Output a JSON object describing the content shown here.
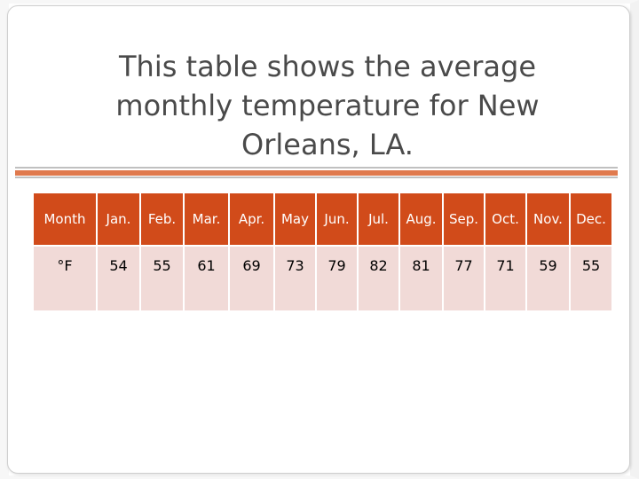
{
  "slide": {
    "title": "This table shows the average monthly temperature for New Orleans, LA."
  },
  "table": {
    "header_label": "Month",
    "months": [
      "Jan.",
      "Feb.",
      "Mar.",
      "Apr.",
      "May",
      "Jun.",
      "Jul.",
      "Aug.",
      "Sep.",
      "Oct.",
      "Nov.",
      "Dec."
    ],
    "unit_label": "°F",
    "temperatures": [
      "54",
      "55",
      "61",
      "69",
      "73",
      "79",
      "82",
      "81",
      "77",
      "71",
      "59",
      "55"
    ]
  },
  "colors": {
    "header_bg": "#d14b1a",
    "row_bg": "#f1dad7",
    "accent_bar": "#e07a4e",
    "title_text": "#4a4a4a"
  }
}
